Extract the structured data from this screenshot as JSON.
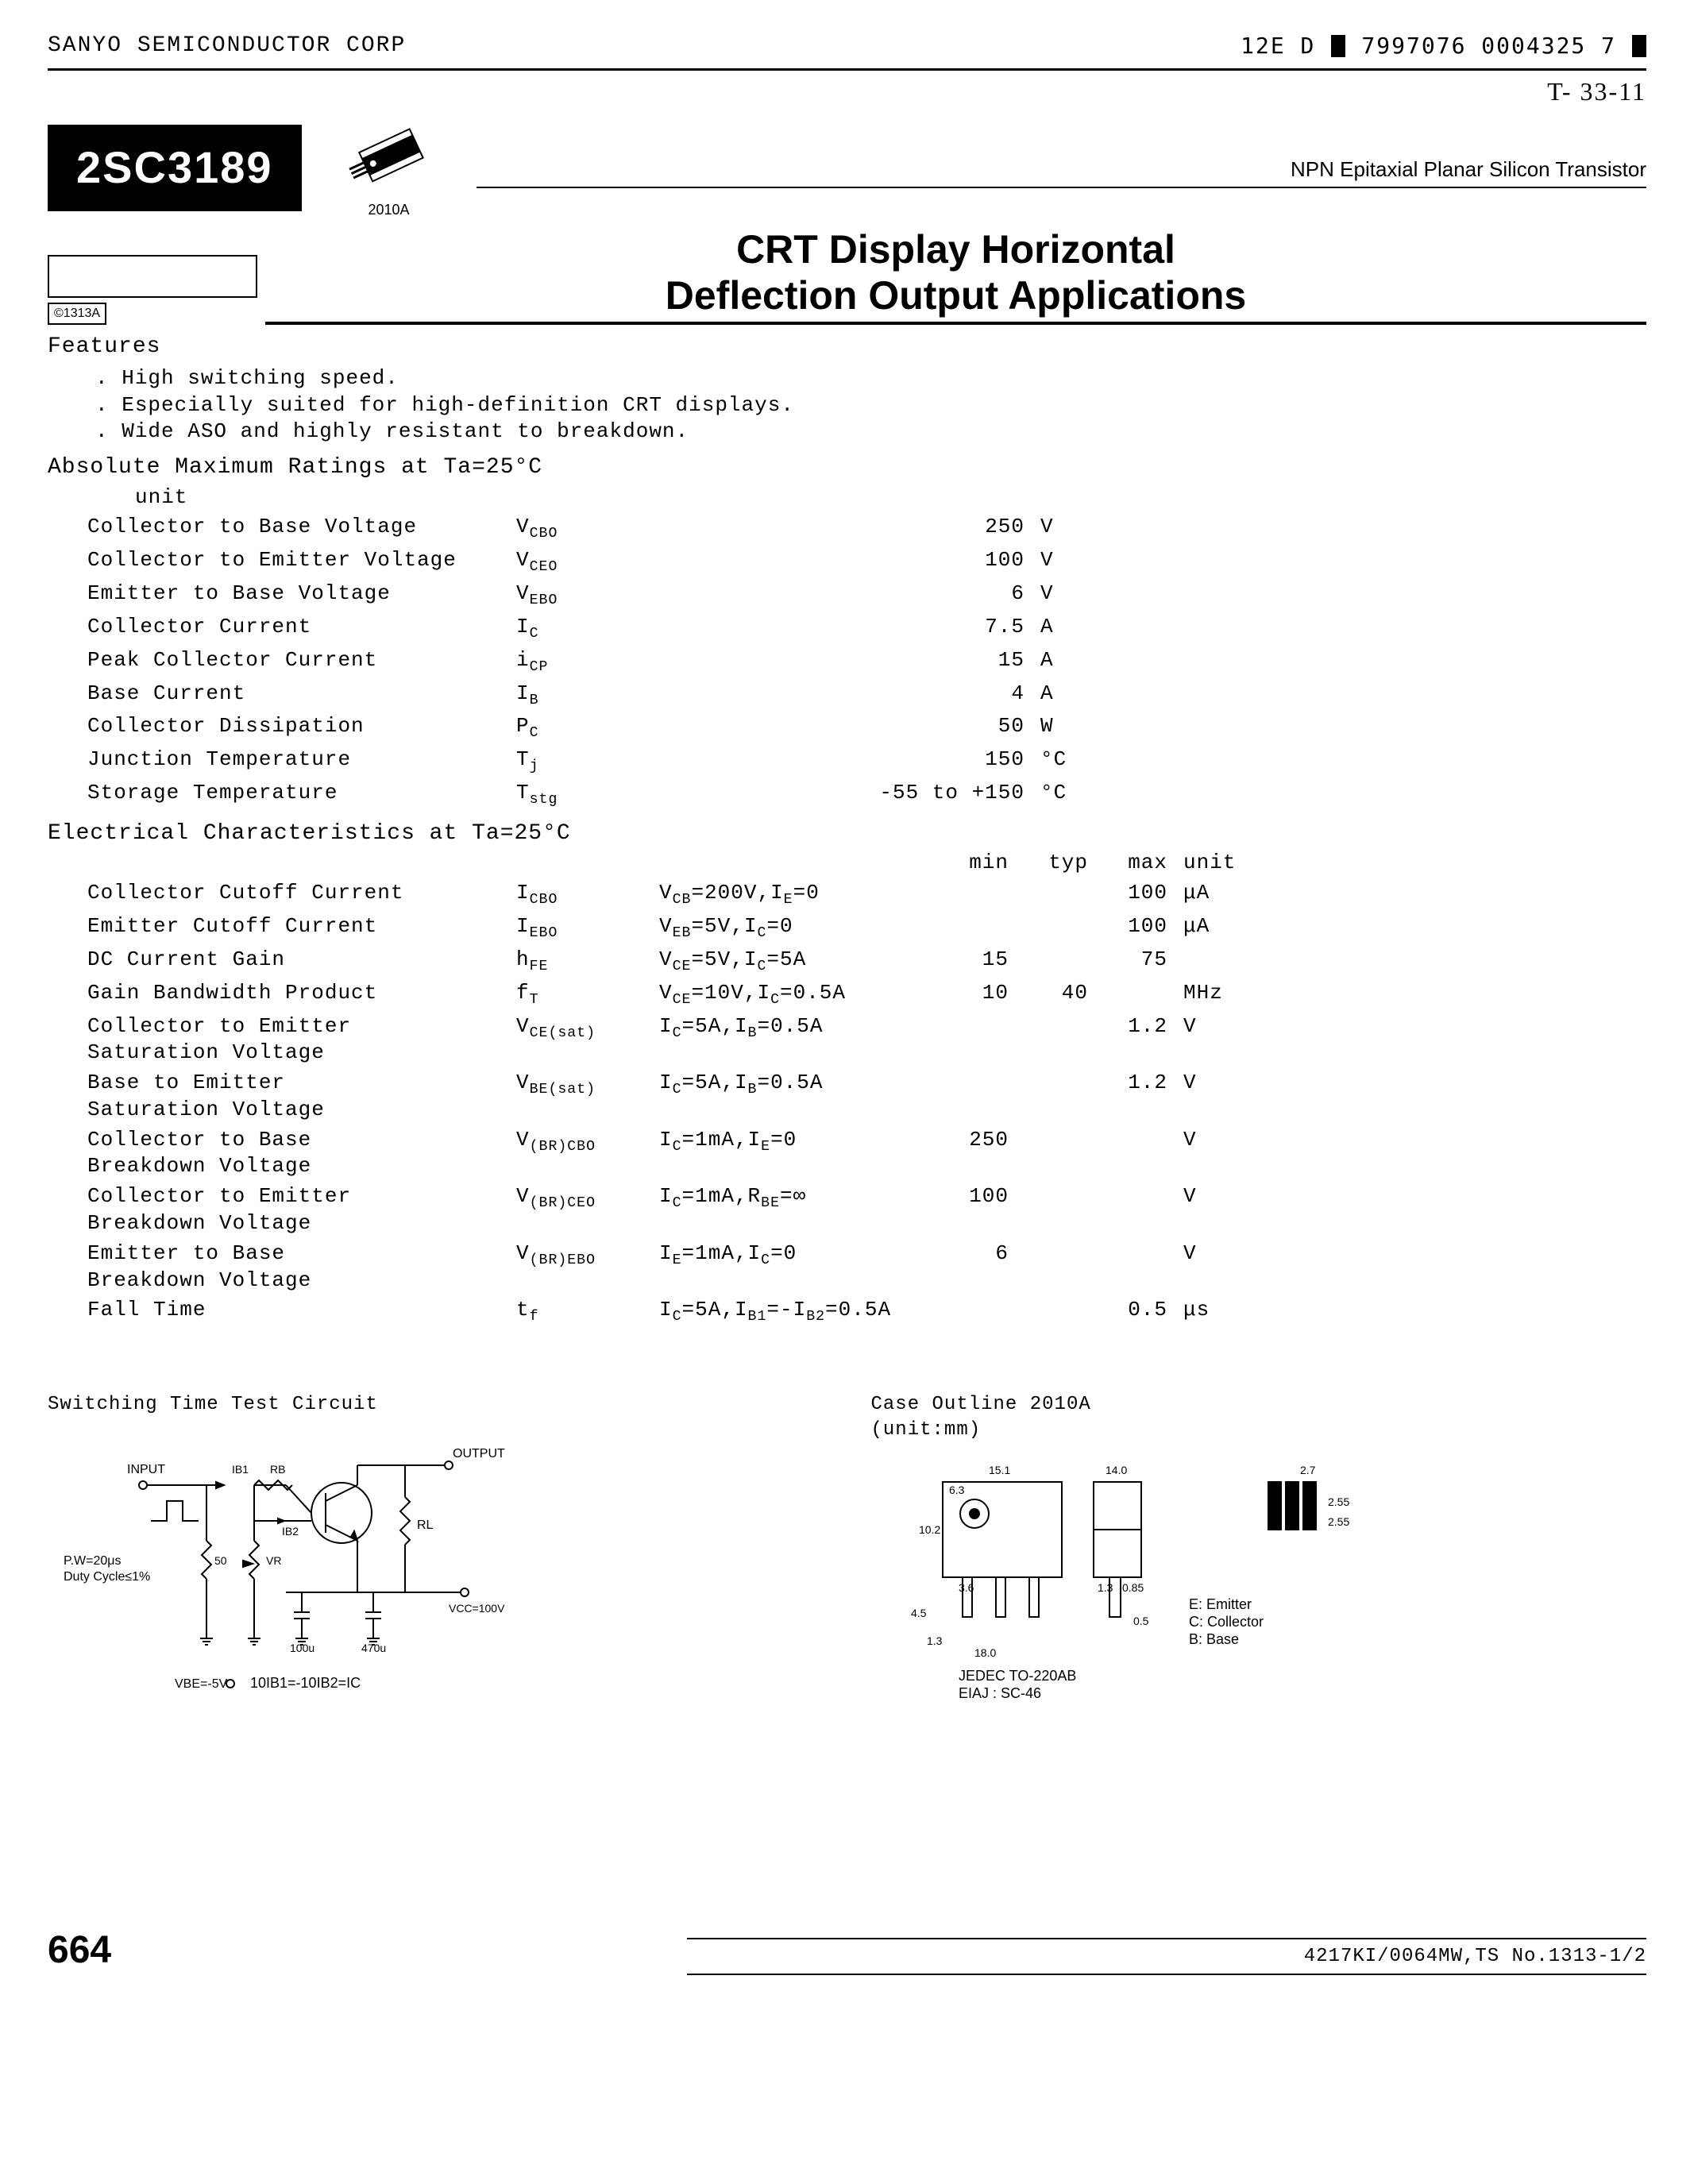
{
  "header": {
    "company": "SANYO SEMICONDUCTOR CORP",
    "seg_a": "12E D",
    "seg_b": "7997076 0004325 7",
    "handwritten": "T- 33-11"
  },
  "part_number": "2SC3189",
  "package_code": "2010A",
  "type_desc": "NPN Epitaxial Planar Silicon Transistor",
  "copyright": "©1313A",
  "main_title_1": "CRT Display Horizontal",
  "main_title_2": "Deflection Output Applications",
  "features_head": "Features",
  "features": [
    "High switching speed.",
    "Especially suited for high-definition CRT displays.",
    "Wide ASO and highly resistant to breakdown."
  ],
  "amr_head": "Absolute Maximum Ratings at Ta=25°C",
  "amr_unit": "unit",
  "amr": [
    {
      "p": "Collector to Base Voltage",
      "s": "V",
      "sub": "CBO",
      "v": "250",
      "u": "V"
    },
    {
      "p": "Collector to Emitter Voltage",
      "s": "V",
      "sub": "CEO",
      "v": "100",
      "u": "V"
    },
    {
      "p": "Emitter to Base Voltage",
      "s": "V",
      "sub": "EBO",
      "v": "6",
      "u": "V"
    },
    {
      "p": "Collector Current",
      "s": "I",
      "sub": "C",
      "v": "7.5",
      "u": "A"
    },
    {
      "p": "Peak Collector Current",
      "s": "i",
      "sub": "CP",
      "v": "15",
      "u": "A"
    },
    {
      "p": "Base Current",
      "s": "I",
      "sub": "B",
      "v": "4",
      "u": "A"
    },
    {
      "p": "Collector Dissipation",
      "s": "P",
      "sub": "C",
      "v": "50",
      "u": "W"
    },
    {
      "p": "Junction Temperature",
      "s": "T",
      "sub": "j",
      "v": "150",
      "u": "°C"
    },
    {
      "p": "Storage Temperature",
      "s": "T",
      "sub": "stg",
      "v": "-55 to +150",
      "u": "°C"
    }
  ],
  "ec_head": "Electrical Characteristics at Ta=25°C",
  "ec_cols": {
    "min": "min",
    "typ": "typ",
    "max": "max",
    "unit": "unit"
  },
  "ec": [
    {
      "p": "Collector Cutoff Current",
      "s": "I",
      "sub": "CBO",
      "cond": "V_CB=200V,I_E=0",
      "min": "",
      "typ": "",
      "max": "100",
      "u": "μA"
    },
    {
      "p": "Emitter Cutoff Current",
      "s": "I",
      "sub": "EBO",
      "cond": "V_EB=5V,I_C=0",
      "min": "",
      "typ": "",
      "max": "100",
      "u": "μA"
    },
    {
      "p": "DC Current Gain",
      "s": "h",
      "sub": "FE",
      "cond": "V_CE=5V,I_C=5A",
      "min": "15",
      "typ": "",
      "max": "75",
      "u": ""
    },
    {
      "p": "Gain Bandwidth Product",
      "s": "f",
      "sub": "T",
      "cond": "V_CE=10V,I_C=0.5A",
      "min": "10",
      "typ": "40",
      "max": "",
      "u": "MHz"
    },
    {
      "p": "Collector to Emitter Saturation Voltage",
      "s": "V",
      "sub": "CE(sat)",
      "cond": "I_C=5A,I_B=0.5A",
      "min": "",
      "typ": "",
      "max": "1.2",
      "u": "V"
    },
    {
      "p": "Base to Emitter Saturation Voltage",
      "s": "V",
      "sub": "BE(sat)",
      "cond": "I_C=5A,I_B=0.5A",
      "min": "",
      "typ": "",
      "max": "1.2",
      "u": "V"
    },
    {
      "p": "Collector to Base Breakdown Voltage",
      "s": "V",
      "sub": "(BR)CBO",
      "cond": "I_C=1mA,I_E=0",
      "min": "250",
      "typ": "",
      "max": "",
      "u": "V"
    },
    {
      "p": "Collector to Emitter Breakdown Voltage",
      "s": "V",
      "sub": "(BR)CEO",
      "cond": "I_C=1mA,R_BE=∞",
      "min": "100",
      "typ": "",
      "max": "",
      "u": "V"
    },
    {
      "p": "Emitter to Base Breakdown Voltage",
      "s": "V",
      "sub": "(BR)EBO",
      "cond": "I_E=1mA,I_C=0",
      "min": "6",
      "typ": "",
      "max": "",
      "u": "V"
    },
    {
      "p": "Fall Time",
      "s": "t",
      "sub": "f",
      "cond": "I_C=5A,I_B1=-I_B2=0.5A",
      "min": "",
      "typ": "",
      "max": "0.5",
      "u": "μs"
    }
  ],
  "diag1_title": "Switching Time Test Circuit",
  "diag1": {
    "labels": {
      "input": "INPUT",
      "output": "OUTPUT",
      "ib1": "IB1",
      "rb": "RB",
      "ib2": "IB2",
      "vr": "VR",
      "rl": "RL",
      "pw": "P.W=20μs",
      "duty": "Duty Cycle≤1%",
      "fifty": "50",
      "c1": "100u",
      "c2": "470u",
      "vcc": "VCC=\n100V",
      "vbe": "VBE=-5V",
      "eq": "10IB1=-10IB2=IC"
    }
  },
  "diag2_title": "Case Outline 2010A",
  "diag2_unit": "(unit:mm)",
  "diag2": {
    "dims": {
      "a": "15.1",
      "b": "14.0",
      "c": "6.3",
      "d": "10.2",
      "e": "3.6",
      "f": "1.3",
      "g": "0.85",
      "h": "2.7",
      "i": "2.55",
      "j": "2.55",
      "k": "4.5",
      "l": "18.0",
      "m": "1.3",
      "n": "0.5"
    },
    "pins": {
      "e": "E: Emitter",
      "c": "C: Collector",
      "b": "B: Base"
    },
    "std1": "JEDEC TO-220AB",
    "std2": "EIAJ : SC-46"
  },
  "footer_code": "4217KI/0064MW,TS No.1313-1/2",
  "page_number": "664",
  "colors": {
    "black": "#000000",
    "white": "#ffffff"
  }
}
